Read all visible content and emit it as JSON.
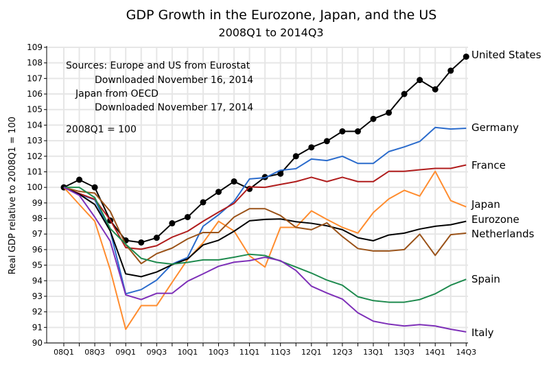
{
  "chart_data": {
    "type": "line",
    "title": "GDP Growth in the Eurozone, Japan, and the US",
    "subtitle": "2008Q1 to 2014Q3",
    "ylabel": "Real GDP relative to 2008Q1 = 100",
    "xlabel": "",
    "ylim": [
      90,
      109
    ],
    "yticks": [
      90,
      91,
      92,
      93,
      94,
      95,
      96,
      97,
      98,
      99,
      100,
      101,
      102,
      103,
      104,
      105,
      106,
      107,
      108,
      109
    ],
    "grid": true,
    "x": [
      "08Q1",
      "08Q2",
      "08Q3",
      "08Q4",
      "09Q1",
      "09Q2",
      "09Q3",
      "09Q4",
      "10Q1",
      "10Q2",
      "10Q3",
      "10Q4",
      "11Q1",
      "11Q2",
      "11Q3",
      "11Q4",
      "12Q1",
      "12Q2",
      "12Q3",
      "12Q4",
      "13Q1",
      "13Q2",
      "13Q3",
      "13Q4",
      "14Q1",
      "14Q2",
      "14Q3"
    ],
    "xtick_labels": [
      "08Q1",
      "08Q3",
      "09Q1",
      "09Q3",
      "10Q1",
      "10Q3",
      "11Q1",
      "11Q3",
      "12Q1",
      "12Q3",
      "13Q1",
      "13Q3",
      "14Q1",
      "14Q3"
    ],
    "annotations": [
      "Sources:  Europe and US from Eurostat",
      "Downloaded November 16, 2014",
      "Japan from OECD",
      "Downloaded November 17, 2014",
      "2008Q1 = 100"
    ],
    "series": [
      {
        "name": "United States",
        "color": "#000000",
        "markers": true,
        "values": [
          100,
          100.49,
          100,
          97.87,
          96.59,
          96.46,
          96.76,
          97.69,
          98.09,
          99.04,
          99.71,
          100.38,
          99.9,
          100.66,
          100.88,
          102.0,
          102.57,
          102.97,
          103.6,
          103.6,
          104.4,
          104.8,
          106.0,
          106.9,
          106.3,
          107.5,
          108.4
        ]
      },
      {
        "name": "Germany",
        "color": "#2a6bcc",
        "markers": false,
        "values": [
          100,
          99.56,
          99.2,
          97.2,
          93.16,
          93.43,
          94.04,
          95.07,
          95.5,
          97.5,
          98.24,
          99.1,
          100.54,
          100.62,
          101.1,
          101.2,
          101.82,
          101.72,
          102.0,
          101.54,
          101.54,
          102.3,
          102.6,
          102.95,
          103.85,
          103.75,
          103.8
        ]
      },
      {
        "name": "France",
        "color": "#b01c1c",
        "markers": false,
        "values": [
          100,
          99.6,
          99.24,
          97.9,
          96.13,
          96.03,
          96.25,
          96.8,
          97.18,
          97.82,
          98.41,
          98.97,
          100.03,
          100.0,
          100.19,
          100.37,
          100.65,
          100.37,
          100.65,
          100.37,
          100.37,
          101.03,
          101.03,
          101.13,
          101.22,
          101.22,
          101.44
        ]
      },
      {
        "name": "Japan",
        "color": "#ff8c2e",
        "markers": false,
        "values": [
          100,
          98.9,
          97.82,
          94.7,
          90.88,
          92.4,
          92.4,
          93.9,
          95.37,
          96.44,
          97.82,
          97.2,
          95.6,
          94.88,
          97.43,
          97.43,
          98.49,
          97.94,
          97.43,
          97.06,
          98.38,
          99.26,
          99.81,
          99.44,
          101.03,
          99.15,
          98.75
        ]
      },
      {
        "name": "Eurozone",
        "color": "#000000",
        "markers": false,
        "values": [
          100,
          99.56,
          98.9,
          97.2,
          94.44,
          94.26,
          94.56,
          95.03,
          95.4,
          96.3,
          96.6,
          97.18,
          97.85,
          97.94,
          97.97,
          97.79,
          97.69,
          97.53,
          97.28,
          96.76,
          96.57,
          96.94,
          97.06,
          97.32,
          97.5,
          97.6,
          97.82
        ]
      },
      {
        "name": "Netherlands",
        "color": "#9a5218",
        "markers": false,
        "values": [
          100,
          99.74,
          99.63,
          98.46,
          96.32,
          95.1,
          95.74,
          96.1,
          96.69,
          97.1,
          97.1,
          98.09,
          98.63,
          98.63,
          98.19,
          97.43,
          97.28,
          97.72,
          96.84,
          96.07,
          95.91,
          95.91,
          96.0,
          96.99,
          95.63,
          96.96,
          97.06
        ]
      },
      {
        "name": "Spain",
        "color": "#1e8a4e",
        "markers": false,
        "values": [
          100,
          100,
          99.34,
          97.35,
          96.35,
          95.44,
          95.18,
          95.07,
          95.18,
          95.34,
          95.34,
          95.51,
          95.7,
          95.62,
          95.26,
          94.88,
          94.49,
          94.04,
          93.71,
          92.97,
          92.72,
          92.62,
          92.62,
          92.79,
          93.16,
          93.71,
          94.09
        ]
      },
      {
        "name": "Italy",
        "color": "#7d2fb8",
        "markers": false,
        "values": [
          100,
          99.49,
          98.09,
          96.54,
          93.09,
          92.79,
          93.19,
          93.19,
          93.97,
          94.44,
          94.93,
          95.19,
          95.29,
          95.51,
          95.29,
          94.66,
          93.65,
          93.21,
          92.82,
          91.94,
          91.4,
          91.21,
          91.09,
          91.18,
          91.09,
          90.88,
          90.71
        ]
      }
    ]
  }
}
